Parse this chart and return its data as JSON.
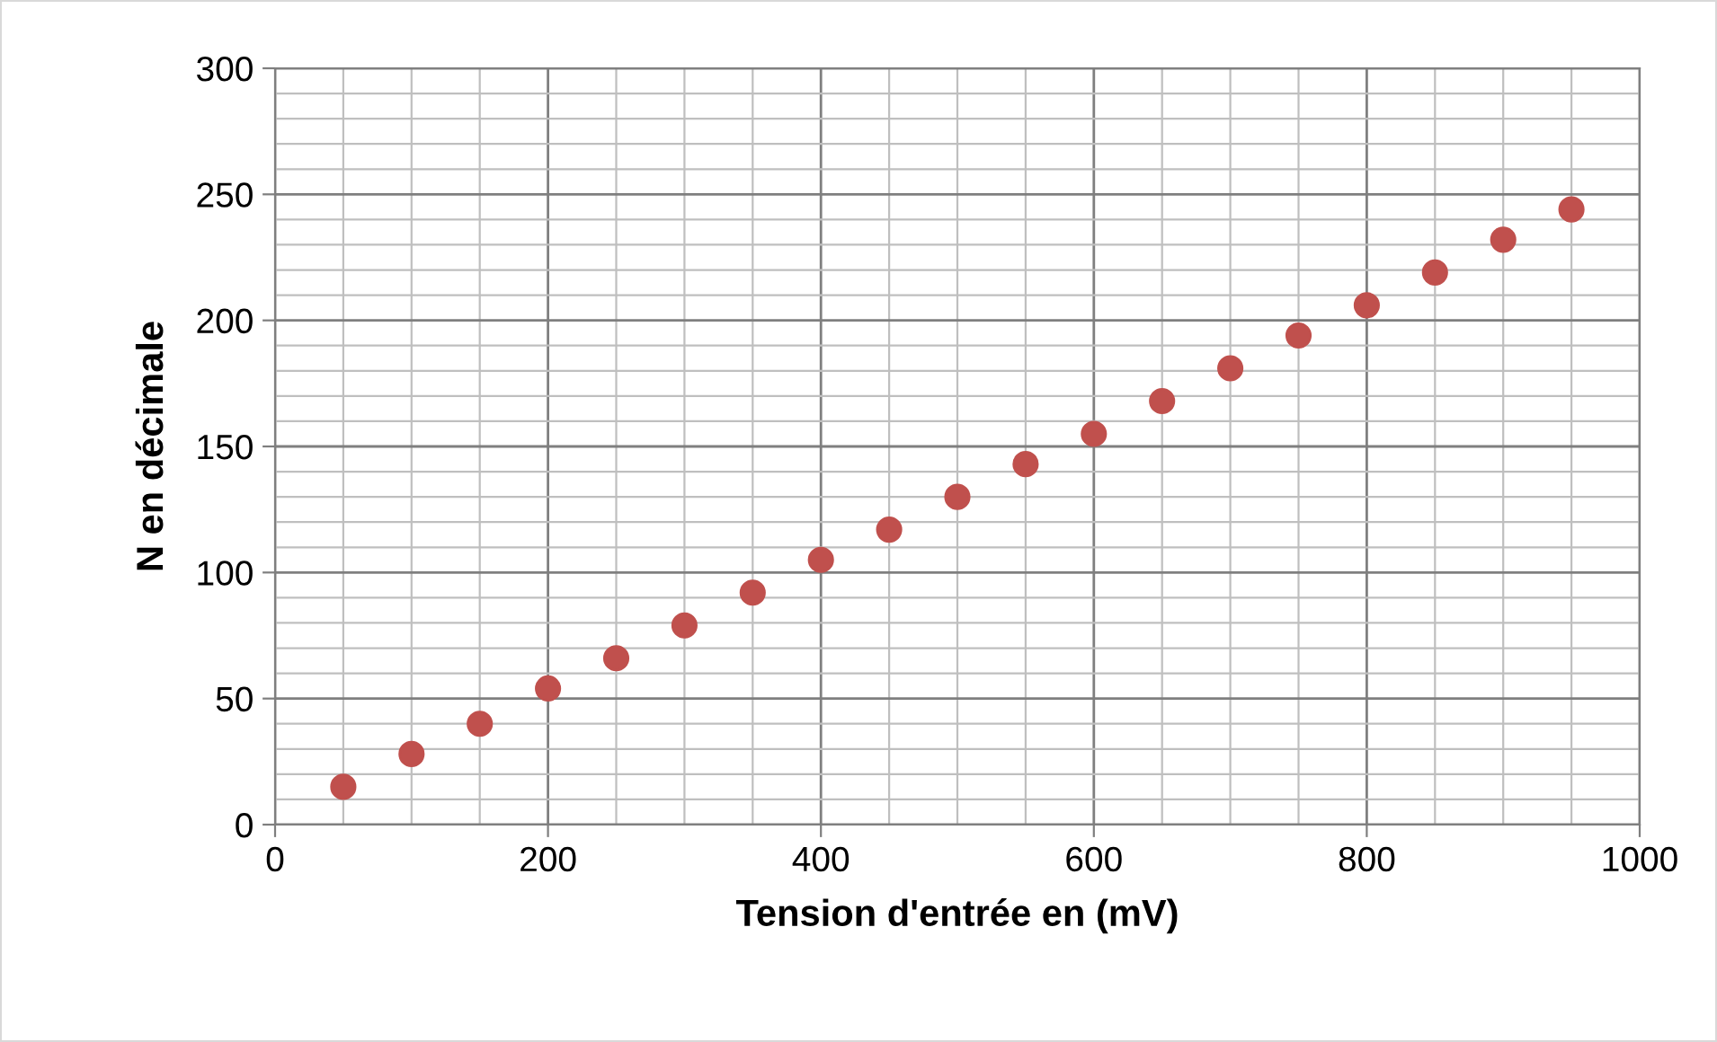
{
  "chart_data": {
    "type": "scatter",
    "xlabel": "Tension d'entrée en (mV)",
    "ylabel": "N en décimale",
    "x": [
      50,
      100,
      150,
      200,
      250,
      300,
      350,
      400,
      450,
      500,
      550,
      600,
      650,
      700,
      750,
      800,
      850,
      900,
      950
    ],
    "series": [
      {
        "color": "#c0504d",
        "values": [
          15,
          28,
          40,
          54,
          66,
          79,
          92,
          105,
          117,
          130,
          143,
          155,
          168,
          181,
          194,
          206,
          219,
          232,
          244
        ]
      }
    ],
    "xlim": [
      0,
      1000
    ],
    "xticks": [
      0,
      200,
      400,
      600,
      800,
      1000
    ],
    "ylim": [
      0,
      300
    ],
    "yticks": [
      0,
      50,
      100,
      150,
      200,
      250,
      300
    ],
    "grid": true,
    "marker": "circle",
    "legend": false
  }
}
